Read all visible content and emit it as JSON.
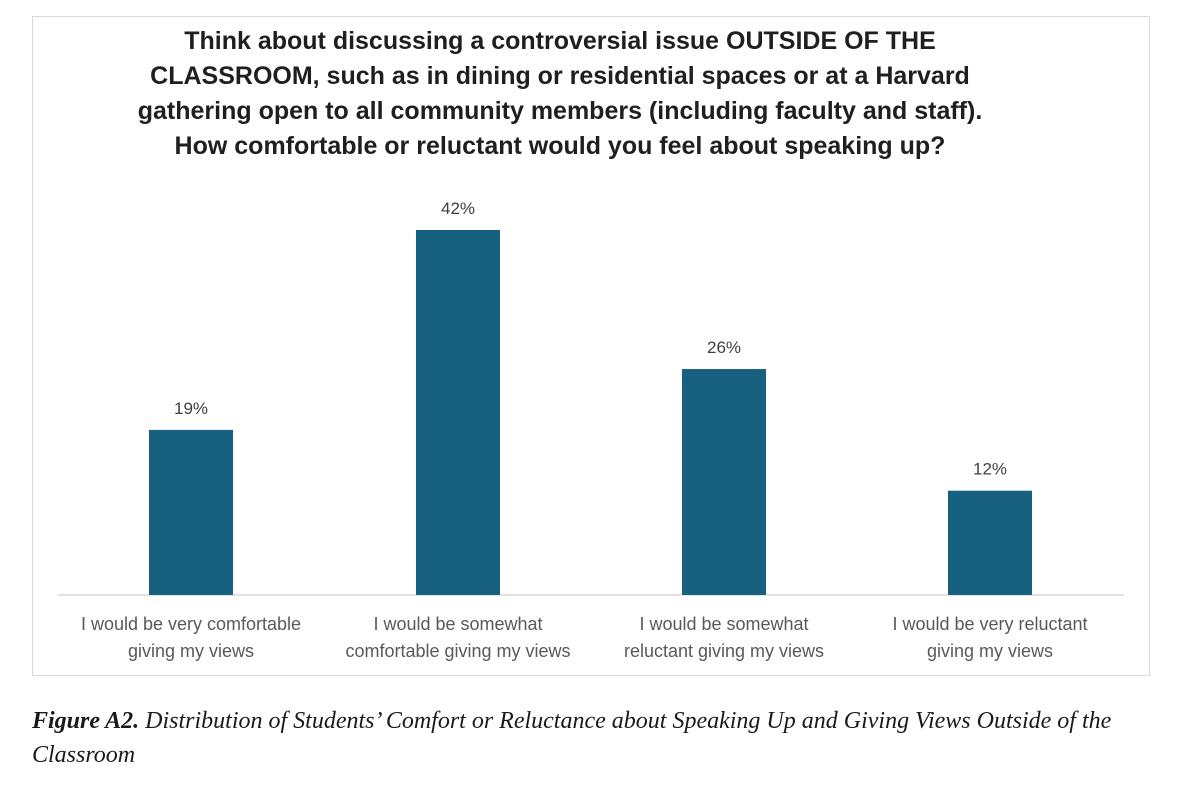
{
  "chart_data": {
    "type": "bar",
    "title": {
      "pre": "Think about discussing a controversial issue ",
      "bold1": "OUTSIDE OF THE",
      "bold2": "CLASSROOM",
      "line2_rest": ", such as in dining or residential spaces or at a Harvard",
      "line3": "gathering open to all community members (including faculty and staff).",
      "line4": "How comfortable or reluctant would you feel about speaking up?"
    },
    "categories": [
      [
        "I would be very comfortable",
        "giving my views"
      ],
      [
        "I would be somewhat",
        "comfortable giving my views"
      ],
      [
        "I would be somewhat",
        "reluctant giving my views"
      ],
      [
        "I would be very reluctant",
        "giving my views"
      ]
    ],
    "values": [
      19,
      42,
      26,
      12
    ],
    "data_labels": [
      "19%",
      "42%",
      "26%",
      "12%"
    ],
    "unit": "%",
    "ylim": [
      0,
      42
    ],
    "xlabel": "",
    "ylabel": "",
    "grid": false,
    "bar_color": "#17607f"
  },
  "caption": {
    "label": "Figure A2.",
    "text": " Distribution of Students’ Comfort or Reluctance about Speaking Up and Giving Views Outside of the Classroom"
  }
}
